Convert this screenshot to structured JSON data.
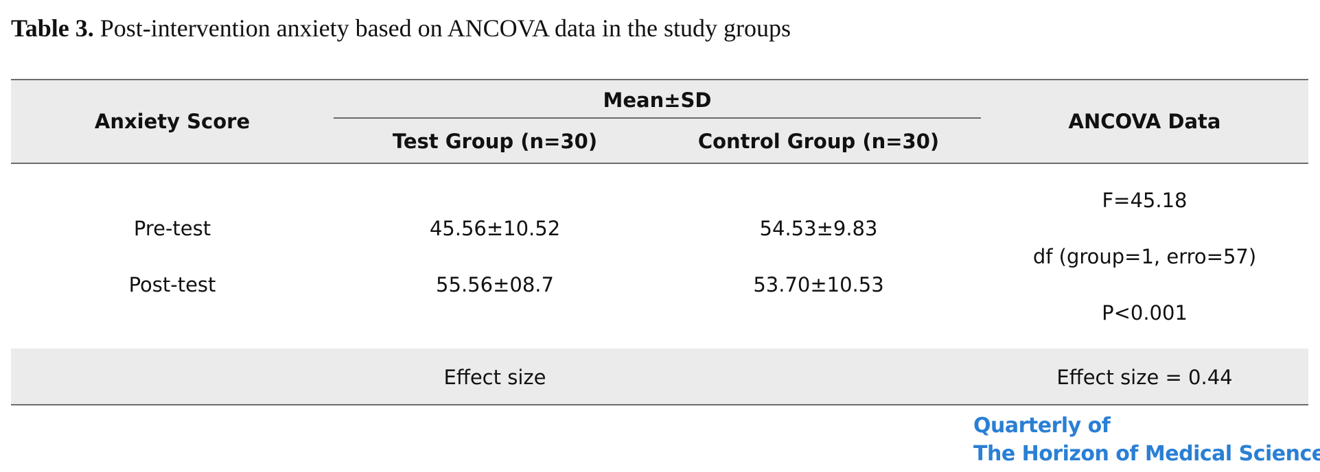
{
  "caption": {
    "label": "Table 3.",
    "text": "Post-intervention anxiety based on ANCOVA data in the study groups"
  },
  "table": {
    "headers": {
      "row_label": "Anxiety Score",
      "group": "Mean±SD",
      "test_group": "Test Group (n=30)",
      "control_group": "Control Group (n=30)",
      "ancova": "ANCOVA Data"
    },
    "rows": [
      {
        "label": "Pre-test",
        "test": "45.56±10.52",
        "control": "54.53±9.83"
      },
      {
        "label": "Post-test",
        "test": "55.56±08.7",
        "control": "53.70±10.53"
      }
    ],
    "ancova": {
      "f": "F=45.18",
      "df": "df (group=1, erro=57)",
      "p": "P<0.001"
    },
    "footer": {
      "label": "Effect size",
      "value": "Effect size = 0.44"
    }
  },
  "logo": {
    "line1": "Quarterly of",
    "line2": "The Horizon of Medical Sciences"
  },
  "colors": {
    "logo": "#2a7fd4",
    "header_bg": "#ebebeb"
  }
}
